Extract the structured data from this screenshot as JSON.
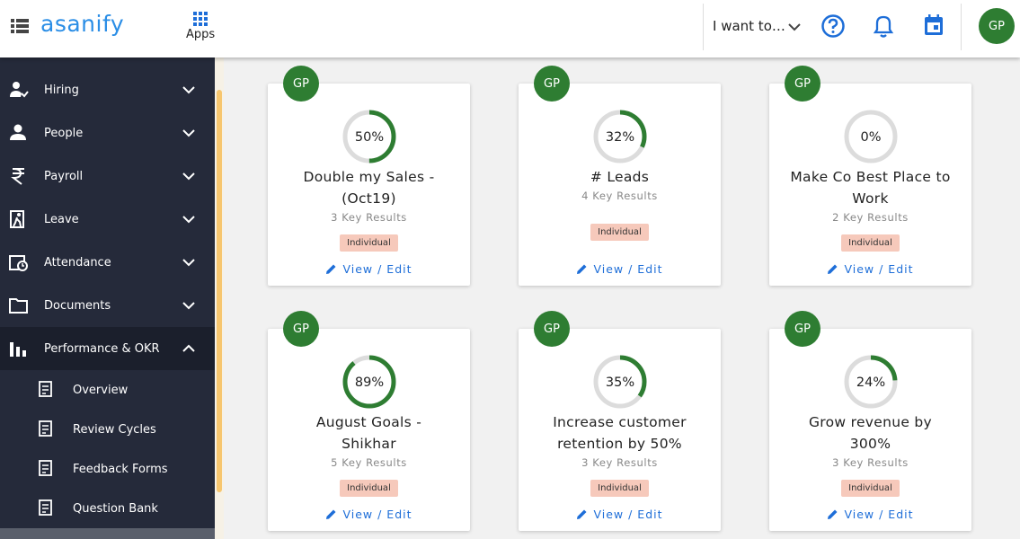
{
  "header": {
    "logo": "asanify",
    "apps": "Apps",
    "menu": "I want to…",
    "avatar": "GP"
  },
  "sidebar": {
    "items": [
      "Hiring",
      "People",
      "Payroll",
      "Leave",
      "Attendance",
      "Documents",
      "Performance & OKR"
    ],
    "subitems": [
      "Overview",
      "Review Cycles",
      "Feedback Forms",
      "Question Bank"
    ]
  },
  "cards": [
    {
      "avatar": "GP",
      "progress": {
        "value": 50,
        "label": "50%"
      },
      "title": "Double my Sales - (Oct19)",
      "key_results": "3 Key Results",
      "tag": "Individual",
      "action": "View / Edit"
    },
    {
      "avatar": "GP",
      "progress": {
        "value": 32,
        "label": "32%"
      },
      "title": "# Leads",
      "key_results": "4 Key Results",
      "tag": "Individual",
      "action": "View / Edit"
    },
    {
      "avatar": "GP",
      "progress": {
        "value": 0,
        "label": "0%"
      },
      "title": "Make Co Best Place to Work",
      "key_results": "2 Key Results",
      "tag": "Individual",
      "action": "View / Edit"
    },
    {
      "avatar": "GP",
      "progress": {
        "value": 89,
        "label": "89%"
      },
      "title": "August Goals - Shikhar",
      "key_results": "5 Key Results",
      "tag": "Individual",
      "action": "View / Edit"
    },
    {
      "avatar": "GP",
      "progress": {
        "value": 35,
        "label": "35%"
      },
      "title": "Increase customer retention by 50%",
      "key_results": "3 Key Results",
      "tag": "Individual",
      "action": "View / Edit"
    },
    {
      "avatar": "GP",
      "progress": {
        "value": 24,
        "label": "24%"
      },
      "title": "Grow revenue by 300%",
      "key_results": "3 Key Results",
      "tag": "Individual",
      "action": "View / Edit"
    }
  ]
}
